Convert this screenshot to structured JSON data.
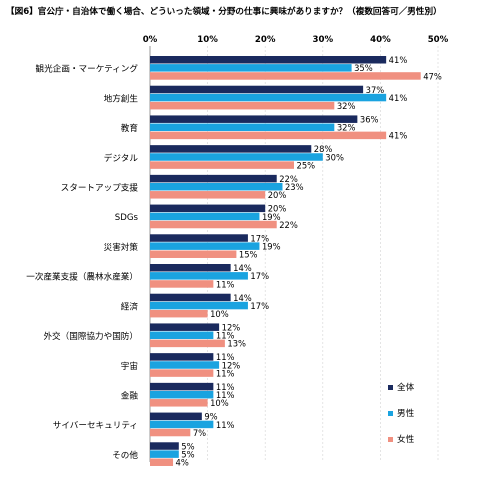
{
  "title": "【図6】官公庁・自治体で働く場合、どういった領域・分野の仕事に興味がありますか？（複数回答可／男性別）",
  "chart_data": {
    "type": "bar",
    "orientation": "horizontal",
    "title": "【図6】官公庁・自治体で働く場合、どういった領域・分野の仕事に興味がありますか？（複数回答可／男性別）",
    "categories": [
      "観光企画・マーケティング",
      "地方創生",
      "教育",
      "デジタル",
      "スタートアップ支援",
      "SDGs",
      "災害対策",
      "一次産業支援（農林水産業）",
      "経済",
      "外交（国際協力や国防）",
      "宇宙",
      "金融",
      "サイバーセキュリティ",
      "その他"
    ],
    "series": [
      {
        "name": "全体",
        "color": "#1a2a5e",
        "values": [
          41,
          37,
          36,
          28,
          22,
          20,
          17,
          14,
          14,
          12,
          11,
          11,
          9,
          5
        ]
      },
      {
        "name": "男性",
        "color": "#1aa3e0",
        "values": [
          35,
          41,
          32,
          30,
          23,
          19,
          19,
          17,
          17,
          11,
          12,
          11,
          11,
          5
        ]
      },
      {
        "name": "女性",
        "color": "#f09080",
        "values": [
          47,
          32,
          41,
          25,
          20,
          22,
          15,
          11,
          10,
          13,
          11,
          10,
          7,
          4
        ]
      }
    ],
    "x_ticks": [
      "0%",
      "10%",
      "20%",
      "30%",
      "40%",
      "50%"
    ],
    "xlim": [
      0,
      50
    ],
    "value_suffix": "%",
    "legend_position": "bottom-right",
    "grid": true
  }
}
